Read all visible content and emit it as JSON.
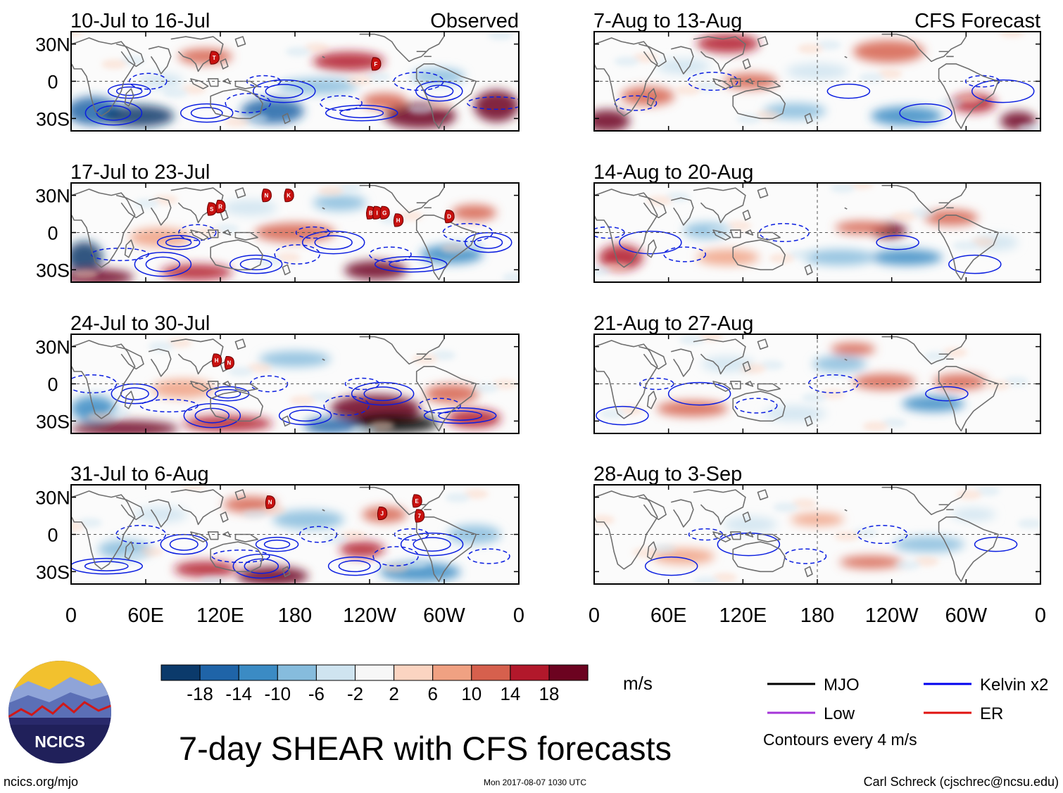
{
  "panels": {
    "observed": [
      {
        "title": "10-Jul to 16-Jul",
        "tag": "Observed",
        "storms": [
          {
            "label": "T",
            "lon": 115,
            "lat": 19
          },
          {
            "label": "F",
            "lon": 245,
            "lat": 14
          }
        ]
      },
      {
        "title": "17-Jul to 23-Jul",
        "tag": "",
        "storms": [
          {
            "label": "S",
            "lon": 113,
            "lat": 19
          },
          {
            "label": "R",
            "lon": 120,
            "lat": 21
          },
          {
            "label": "N",
            "lon": 157,
            "lat": 30
          },
          {
            "label": "K",
            "lon": 175,
            "lat": 30
          },
          {
            "label": "B",
            "lon": 241,
            "lat": 16
          },
          {
            "label": "I",
            "lon": 246,
            "lat": 16
          },
          {
            "label": "G",
            "lon": 252,
            "lat": 16
          },
          {
            "label": "H",
            "lon": 263,
            "lat": 10
          },
          {
            "label": "D",
            "lon": 304,
            "lat": 13
          }
        ]
      },
      {
        "title": "24-Jul to 30-Jul",
        "tag": "",
        "storms": [
          {
            "label": "H",
            "lon": 117,
            "lat": 19
          },
          {
            "label": "N",
            "lon": 127,
            "lat": 17
          }
        ]
      },
      {
        "title": "31-Jul to 6-Aug",
        "tag": "",
        "storms": [
          {
            "label": "N",
            "lon": 160,
            "lat": 26
          },
          {
            "label": "J",
            "lon": 250,
            "lat": 17
          },
          {
            "label": "E",
            "lon": 278,
            "lat": 27
          },
          {
            "label": "7",
            "lon": 280,
            "lat": 15
          }
        ]
      }
    ],
    "forecast": [
      {
        "title": "7-Aug to 13-Aug",
        "tag": "CFS Forecast"
      },
      {
        "title": "14-Aug to 20-Aug",
        "tag": ""
      },
      {
        "title": "21-Aug to 27-Aug",
        "tag": ""
      },
      {
        "title": "28-Aug to 3-Sep",
        "tag": ""
      }
    ]
  },
  "axes": {
    "lat_ticks": [
      "30N",
      "0",
      "30S"
    ],
    "lon_ticks": [
      "0",
      "60E",
      "120E",
      "180",
      "120W",
      "60W",
      "0"
    ]
  },
  "colorbar": {
    "labels": [
      "-18",
      "-14",
      "-10",
      "-6",
      "-2",
      "2",
      "6",
      "10",
      "14",
      "18"
    ],
    "colors": [
      "#0b3a6b",
      "#1f64a8",
      "#3b8bc4",
      "#86bcdd",
      "#cfe4f0",
      "#f7f7f7",
      "#fbd4c1",
      "#f0a182",
      "#d6604d",
      "#b2182b",
      "#6c0320"
    ],
    "units": "m/s"
  },
  "legend": {
    "items": [
      {
        "label": "MJO",
        "color": "#000000"
      },
      {
        "label": "Kelvin x2",
        "color": "#0000ee"
      },
      {
        "label": "Low",
        "color": "#a535d8"
      },
      {
        "label": "ER",
        "color": "#e0120f"
      }
    ],
    "note": "Contours every 4 m/s"
  },
  "logo": {
    "text": "NCICS"
  },
  "title": "7-day SHEAR with CFS forecasts",
  "footer": {
    "url": "ncics.org/mjo",
    "timestamp": "Mon 2017-08-07 1030 UTC",
    "credit": "Carl Schreck (cjschrec@ncsu.edu)"
  }
}
